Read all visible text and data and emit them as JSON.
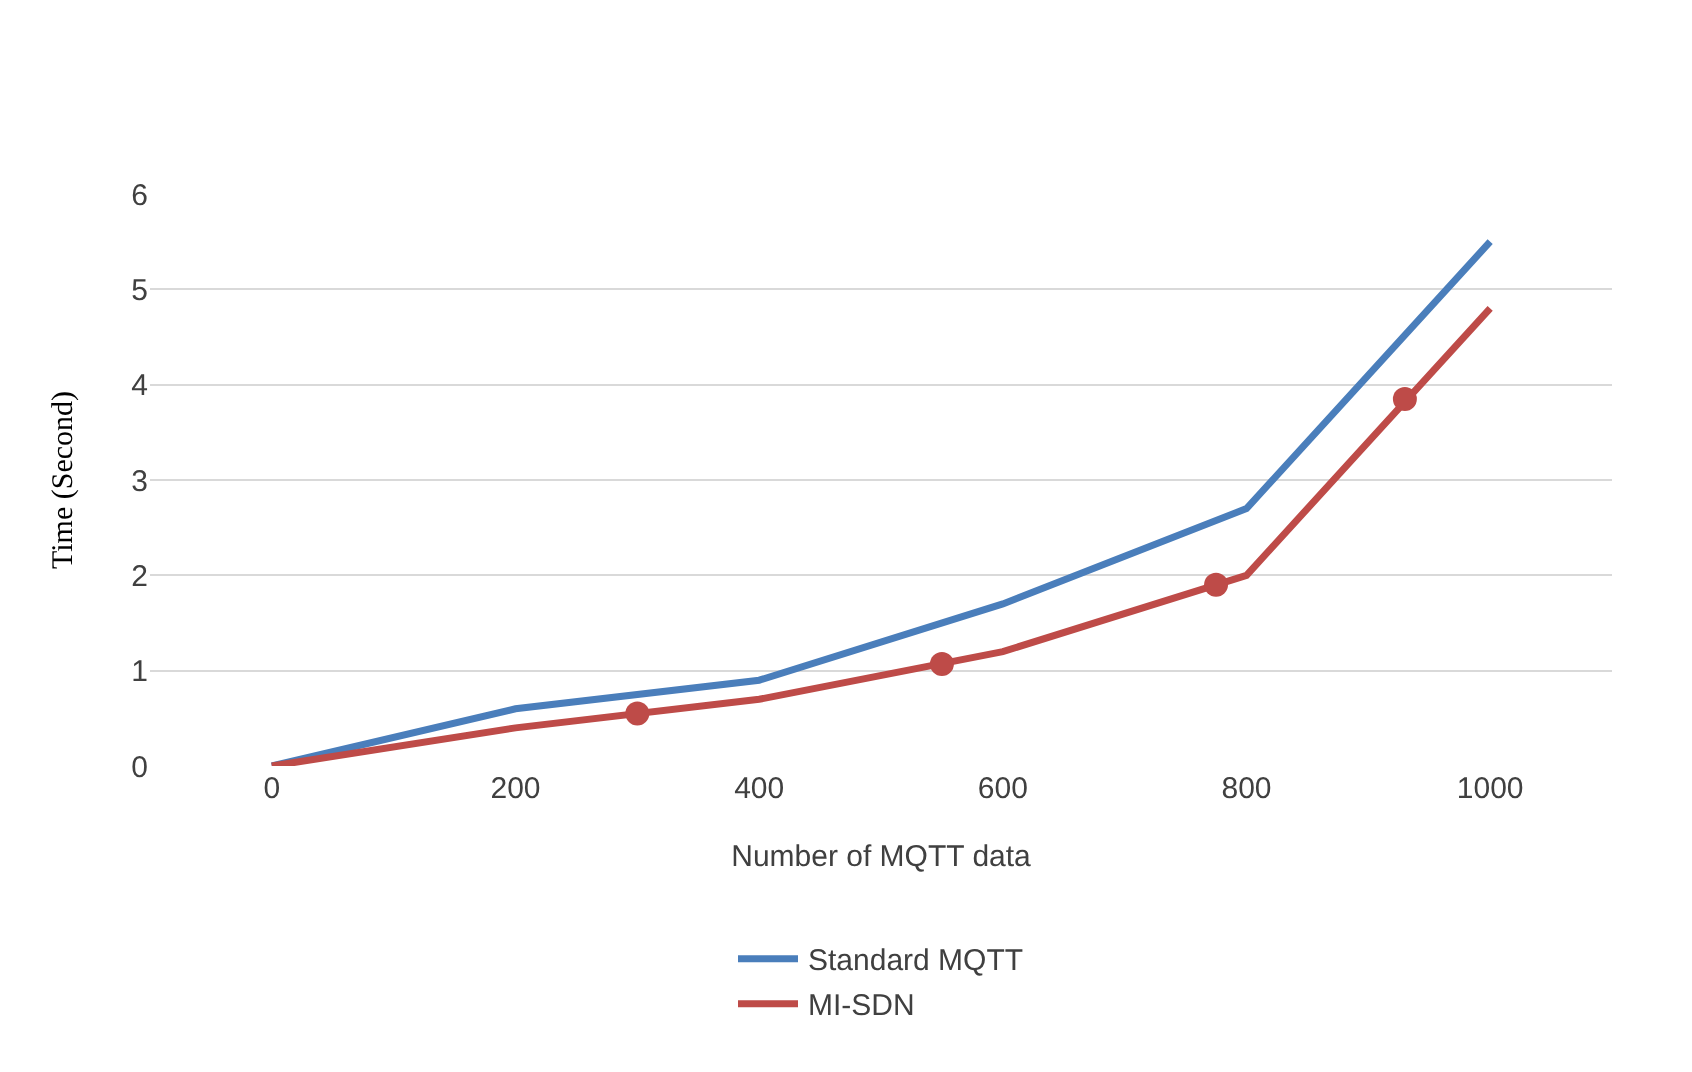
{
  "chart_data": {
    "type": "line",
    "xlabel": "Number of MQTT data",
    "ylabel": "Time (Second)",
    "x": [
      0,
      200,
      400,
      600,
      800,
      1000
    ],
    "xlim": [
      -100,
      1100
    ],
    "xticks": [
      0,
      200,
      400,
      600,
      800,
      1000
    ],
    "ylim": [
      0,
      6
    ],
    "yticks": [
      0,
      1,
      2,
      3,
      4,
      5,
      6
    ],
    "grid": "y",
    "legend": "bottom",
    "line_style": "solid",
    "series": [
      {
        "name": "Standard MQTT",
        "color": "#4a7ebb",
        "values": [
          0,
          0.6,
          0.9,
          1.7,
          2.7,
          5.5
        ],
        "marker": "none"
      },
      {
        "name": "MI-SDN",
        "color": "#be4b48",
        "values": [
          0,
          0.4,
          0.7,
          1.2,
          2.0,
          4.8
        ],
        "marker": "none"
      },
      {
        "type": "scatter",
        "color": "#be4b48",
        "x": [
          300,
          550,
          775,
          930
        ],
        "values": [
          0.55,
          1.07,
          1.9,
          3.85
        ],
        "marker": "circle"
      }
    ]
  }
}
